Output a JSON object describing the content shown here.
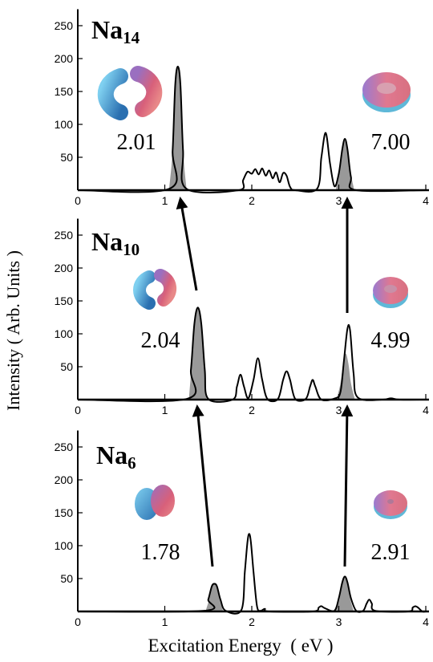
{
  "figure": {
    "xlabel": "Excitation Energy  ( eV )",
    "ylabel": "Intensity ( Arb. Units )"
  },
  "chart_data": [
    {
      "type": "line",
      "label": "Na",
      "label_sub": "14",
      "annotations": [
        "2.01",
        "7.00"
      ],
      "xlim": [
        0,
        4
      ],
      "xticks": [
        0,
        1,
        2,
        3,
        4
      ],
      "ylim": [
        0,
        275
      ],
      "yticks": [
        50,
        100,
        150,
        200,
        250
      ],
      "line": {
        "color": "#000000",
        "x": [
          0,
          1.05,
          1.09,
          1.12,
          1.15,
          1.18,
          1.21,
          1.25,
          1.85,
          1.9,
          1.95,
          2.0,
          2.04,
          2.08,
          2.12,
          2.16,
          2.2,
          2.24,
          2.28,
          2.32,
          2.36,
          2.4,
          2.44,
          2.5,
          2.75,
          2.8,
          2.85,
          2.9,
          2.95,
          3.0,
          3.04,
          3.07,
          3.1,
          3.14,
          3.2,
          4
        ],
        "values": [
          0,
          2,
          60,
          160,
          188,
          160,
          60,
          2,
          0,
          15,
          28,
          25,
          32,
          24,
          33,
          22,
          30,
          18,
          27,
          12,
          26,
          22,
          5,
          0,
          2,
          50,
          87,
          40,
          6,
          25,
          62,
          78,
          62,
          20,
          0,
          0
        ]
      },
      "shaded": [
        {
          "color": "#999999",
          "x": [
            1.05,
            1.09,
            1.12,
            1.15,
            1.18,
            1.21,
            1.25
          ],
          "values": [
            2,
            60,
            160,
            188,
            160,
            60,
            2
          ]
        },
        {
          "color": "#999999",
          "x": [
            2.97,
            3.01,
            3.04,
            3.07,
            3.1,
            3.13,
            3.17
          ],
          "values": [
            5,
            30,
            62,
            78,
            62,
            30,
            5
          ]
        }
      ]
    },
    {
      "type": "line",
      "label": "Na",
      "label_sub": "10",
      "annotations": [
        "2.04",
        "4.99"
      ],
      "xlim": [
        0,
        4
      ],
      "xticks": [
        0,
        1,
        2,
        3,
        4
      ],
      "ylim": [
        0,
        275
      ],
      "yticks": [
        50,
        100,
        150,
        200,
        250
      ],
      "line": {
        "color": "#000000",
        "x": [
          0,
          1.25,
          1.3,
          1.34,
          1.38,
          1.42,
          1.46,
          1.5,
          1.78,
          1.83,
          1.87,
          1.91,
          1.96,
          2.02,
          2.07,
          2.12,
          2.18,
          2.3,
          2.36,
          2.4,
          2.44,
          2.5,
          2.62,
          2.67,
          2.7,
          2.73,
          2.8,
          2.96,
          3.02,
          3.06,
          3.1,
          3.13,
          3.17,
          3.22,
          3.5,
          3.6,
          3.7,
          4
        ],
        "values": [
          0,
          1,
          45,
          115,
          140,
          115,
          45,
          1,
          0,
          20,
          38,
          20,
          2,
          30,
          63,
          30,
          1,
          1,
          30,
          43,
          30,
          1,
          1,
          20,
          30,
          20,
          0,
          2,
          12,
          60,
          108,
          105,
          40,
          3,
          0,
          2,
          0,
          0
        ]
      },
      "shaded": [
        {
          "color": "#999999",
          "x": [
            1.28,
            1.32,
            1.35,
            1.38,
            1.41,
            1.44,
            1.48
          ],
          "values": [
            5,
            70,
            125,
            140,
            125,
            70,
            5
          ]
        },
        {
          "color": "#999999",
          "x": [
            2.98,
            3.02,
            3.05,
            3.08,
            3.11,
            3.14,
            3.18
          ],
          "values": [
            3,
            25,
            55,
            70,
            55,
            25,
            3
          ]
        }
      ]
    },
    {
      "type": "line",
      "label": "Na",
      "label_sub": "6",
      "annotations": [
        "1.78",
        "2.91"
      ],
      "xlim": [
        0,
        4
      ],
      "xticks": [
        0,
        1,
        2,
        3,
        4
      ],
      "ylim": [
        0,
        275
      ],
      "yticks": [
        50,
        100,
        150,
        200,
        250
      ],
      "line": {
        "color": "#000000",
        "x": [
          0,
          1.45,
          1.5,
          1.54,
          1.57,
          1.6,
          1.64,
          1.7,
          1.88,
          1.92,
          1.95,
          1.97,
          1.99,
          2.02,
          2.06,
          2.1,
          2.15,
          2.2,
          2.7,
          2.77,
          2.8,
          2.84,
          2.95,
          3.0,
          3.04,
          3.07,
          3.1,
          3.14,
          3.2,
          3.28,
          3.32,
          3.35,
          3.38,
          3.42,
          3.8,
          3.85,
          3.88,
          3.91,
          3.96,
          4
        ],
        "values": [
          0,
          1,
          18,
          38,
          42,
          38,
          18,
          1,
          2,
          60,
          105,
          118,
          105,
          60,
          8,
          1,
          4,
          0,
          0,
          6,
          8,
          5,
          1,
          20,
          44,
          53,
          44,
          20,
          1,
          1,
          12,
          18,
          12,
          1,
          0,
          6,
          8,
          6,
          0,
          0
        ]
      },
      "shaded": [
        {
          "color": "#999999",
          "x": [
            1.47,
            1.51,
            1.54,
            1.57,
            1.6,
            1.63,
            1.67
          ],
          "values": [
            1,
            18,
            36,
            42,
            36,
            18,
            1
          ]
        },
        {
          "color": "#999999",
          "x": [
            2.97,
            3.01,
            3.04,
            3.07,
            3.1,
            3.13,
            3.17
          ],
          "values": [
            1,
            20,
            44,
            53,
            44,
            20,
            1
          ]
        }
      ]
    }
  ]
}
